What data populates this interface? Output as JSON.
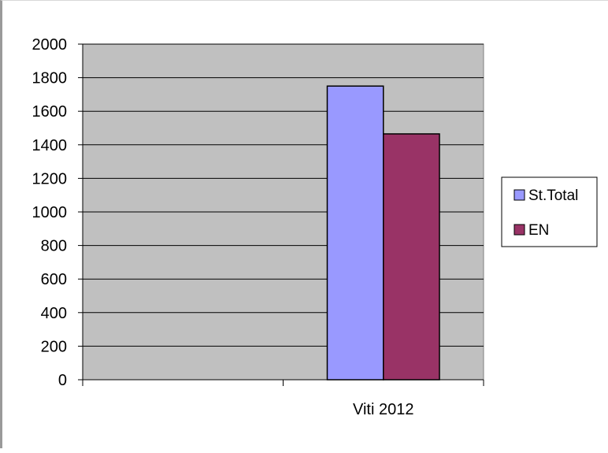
{
  "chart_data": {
    "type": "bar",
    "categories": [
      "",
      "Viti 2012"
    ],
    "series": [
      {
        "name": "St.Total",
        "values": [
          null,
          1750
        ]
      },
      {
        "name": "EN",
        "values": [
          null,
          1465
        ]
      }
    ],
    "yticks": [
      0,
      200,
      400,
      600,
      800,
      1000,
      1200,
      1400,
      1600,
      1800,
      2000
    ],
    "ylim": [
      0,
      2000
    ],
    "grid": true,
    "legend_position": "right",
    "colors": {
      "plot_background": "#c0c0c0",
      "series": [
        "#9999ff",
        "#993366"
      ],
      "grid": "#000000"
    }
  }
}
